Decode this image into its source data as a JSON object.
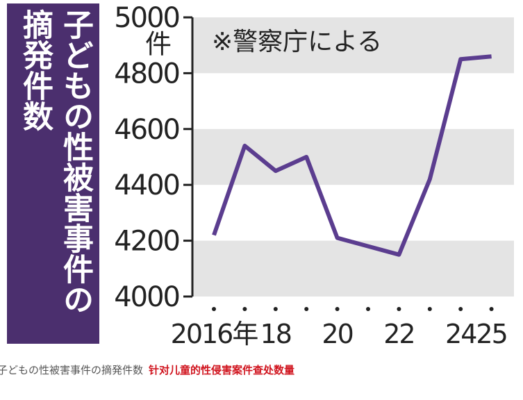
{
  "chart_data": {
    "type": "line",
    "title": "子どもの性被害事件の摘発件数",
    "y_unit_label": "件",
    "annotation": "※警察庁による",
    "categories": [
      "2016年",
      null,
      "18",
      null,
      "20",
      null,
      "22",
      null,
      "24",
      "25"
    ],
    "series": [
      {
        "color": "#5b3d8f",
        "values": [
          4220,
          4540,
          4450,
          4500,
          4210,
          4180,
          4150,
          4420,
          4850,
          4860
        ]
      }
    ],
    "ylim": [
      4000,
      5000
    ],
    "yticks": [
      4000,
      4200,
      4400,
      4600,
      4800,
      5000
    ],
    "grid": "bands",
    "title_color": "#4b2f6e"
  },
  "caption": {
    "source_text": "子どもの性被害事件の摘発件数",
    "translation": "针对儿童的性侵害案件查处数量"
  }
}
